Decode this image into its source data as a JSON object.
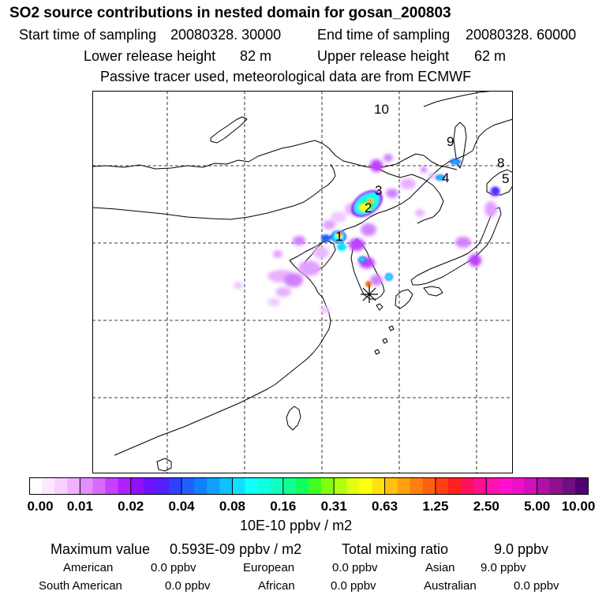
{
  "title": "SO2 source contributions in nested domain for gosan_200803",
  "sampling": {
    "start_label": "Start time of sampling",
    "start_value": "20080328. 30000",
    "end_label": "End time of sampling",
    "end_value": "20080328. 60000"
  },
  "release": {
    "lower_label": "Lower release height",
    "lower_value": "82 m",
    "upper_label": "Upper release height",
    "upper_value": "62 m"
  },
  "tracer_note": "Passive tracer used, meteorological data are from ECMWF",
  "map": {
    "source_numbers": [
      "1",
      "2",
      "3",
      "4",
      "5",
      "8",
      "9",
      "10"
    ],
    "receptor_marker": "asterisk-icon"
  },
  "colorbar": {
    "tick_labels": [
      "0.00",
      "0.01",
      "0.02",
      "0.04",
      "0.08",
      "0.16",
      "0.31",
      "0.63",
      "1.25",
      "2.50",
      "5.00",
      "10.00"
    ],
    "unit": "10E-10 ppbv / m2",
    "colors": [
      "#ffffff",
      "#fde9ff",
      "#f8d2ff",
      "#f0b2ff",
      "#e38dff",
      "#d66aff",
      "#c640ff",
      "#b020ff",
      "#9010ff",
      "#7010ff",
      "#5020ff",
      "#3040ff",
      "#2060ff",
      "#1080ff",
      "#10a0ff",
      "#10c0ff",
      "#10e0ff",
      "#10ffff",
      "#10ffe0",
      "#10ffc0",
      "#10ff90",
      "#10ff60",
      "#40ff20",
      "#80ff10",
      "#b0ff10",
      "#e0ff10",
      "#ffff10",
      "#ffe010",
      "#ffc010",
      "#ffa010",
      "#ff8010",
      "#ff6010",
      "#ff4010",
      "#ff2020",
      "#ff1060",
      "#ff1090",
      "#ff10b0",
      "#ff10d0",
      "#ee10c8",
      "#d010b8",
      "#b010a8",
      "#901090",
      "#701080",
      "#500070"
    ]
  },
  "summary": {
    "max_label": "Maximum value",
    "max_value": "0.593E-09 ppbv / m2",
    "total_label": "Total mixing ratio",
    "total_value": "9.0 ppbv"
  },
  "regions": [
    {
      "name": "American",
      "value": "0.0 ppbv"
    },
    {
      "name": "European",
      "value": "0.0 ppbv"
    },
    {
      "name": "Asian",
      "value": "9.0 ppbv"
    },
    {
      "name": "South American",
      "value": "0.0 ppbv"
    },
    {
      "name": "African",
      "value": "0.0 ppbv"
    },
    {
      "name": "Australian",
      "value": "0.0 ppbv"
    }
  ]
}
